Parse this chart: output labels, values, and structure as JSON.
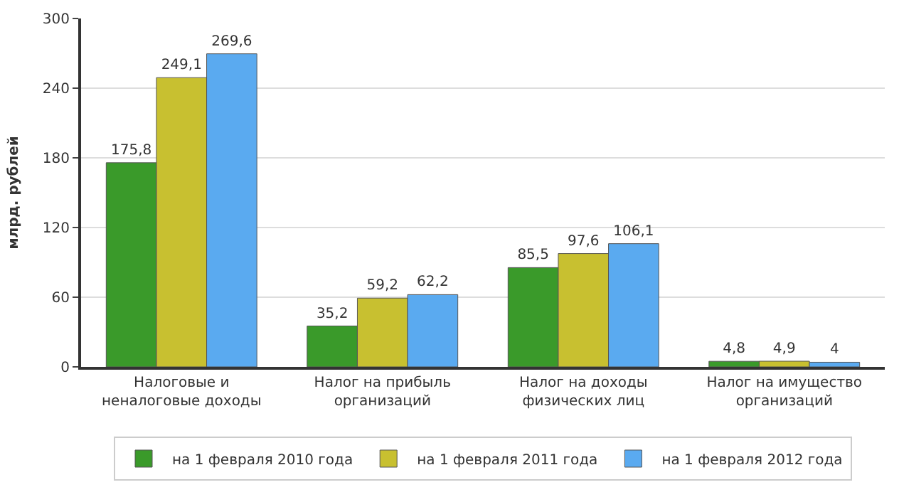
{
  "chart_data": {
    "type": "bar",
    "ylabel": "млрд. рублей",
    "categories": [
      "Налоговые и\nненалоговые доходы",
      "Налог на прибыль\nорганизаций",
      "Налог на доходы\nфизических лиц",
      "Налог на имущество\nорганизаций"
    ],
    "series": [
      {
        "name": "на 1 февраля 2010 года",
        "color": "#3a9a2a",
        "values": [
          175.8,
          35.2,
          85.5,
          4.8
        ],
        "value_labels": [
          "175,8",
          "35,2",
          "85,5",
          "4,8"
        ]
      },
      {
        "name": "на 1 февраля 2011 года",
        "color": "#c8c030",
        "values": [
          249.1,
          59.2,
          97.6,
          4.9
        ],
        "value_labels": [
          "249,1",
          "59,2",
          "97,6",
          "4,9"
        ]
      },
      {
        "name": "на 1 февраля 2012 года",
        "color": "#5aaaf0",
        "values": [
          269.6,
          62.2,
          106.1,
          4
        ],
        "value_labels": [
          "269,6",
          "62,2",
          "106,1",
          "4"
        ]
      }
    ],
    "ylim": [
      0,
      300
    ],
    "yticks": [
      0,
      60,
      120,
      180,
      240,
      300
    ],
    "grid": "y",
    "legend": "bottom"
  }
}
